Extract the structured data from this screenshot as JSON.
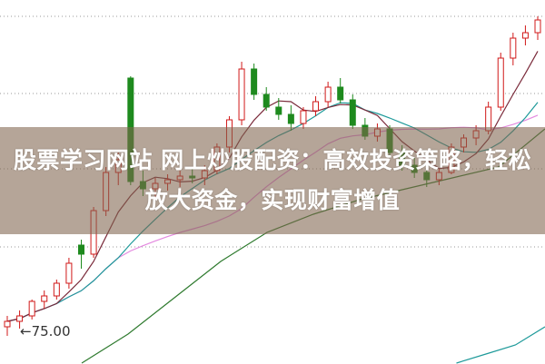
{
  "banner": {
    "title": "股票学习网站 网上炒股配资：高效投资策略，轻松放大资金，实现财富增值"
  },
  "chart_data": {
    "type": "candlestick",
    "title": "",
    "grid": true,
    "colors": {
      "up": "#d01818",
      "down": "#1e8a1e",
      "ma_short": "#7a2a3a",
      "ma_mid": "#1e9a9a",
      "ma_long": "#e48ae0",
      "ma_longer": "#2e7a2e"
    },
    "annotation": {
      "label": "75.00",
      "arrow": "left"
    },
    "candles": [
      [
        75.4,
        76.0,
        74.9,
        75.7
      ],
      [
        75.7,
        76.3,
        75.3,
        76.0
      ],
      [
        76.0,
        76.9,
        75.8,
        76.8
      ],
      [
        76.8,
        77.4,
        76.4,
        77.1
      ],
      [
        77.1,
        78.0,
        76.9,
        77.8
      ],
      [
        77.8,
        79.2,
        77.5,
        78.9
      ],
      [
        79.9,
        80.2,
        78.6,
        79.4
      ],
      [
        79.4,
        82.0,
        79.2,
        81.8
      ],
      [
        81.8,
        84.2,
        81.5,
        83.9
      ],
      [
        83.9,
        85.0,
        83.2,
        84.6
      ],
      [
        89.1,
        89.2,
        83.2,
        83.4
      ],
      [
        83.4,
        84.0,
        82.6,
        83.0
      ],
      [
        83.0,
        83.6,
        82.5,
        83.3
      ],
      [
        83.3,
        83.8,
        82.9,
        83.5
      ],
      [
        83.5,
        84.0,
        83.1,
        83.7
      ],
      [
        83.7,
        84.2,
        83.3,
        83.6
      ],
      [
        83.6,
        84.3,
        83.2,
        84.0
      ],
      [
        84.0,
        85.5,
        83.8,
        85.3
      ],
      [
        85.3,
        87.0,
        85.0,
        86.8
      ],
      [
        86.8,
        90.0,
        86.5,
        89.6
      ],
      [
        89.6,
        89.9,
        87.9,
        88.2
      ],
      [
        88.2,
        88.6,
        87.3,
        87.5
      ],
      [
        87.5,
        88.0,
        86.8,
        87.1
      ],
      [
        87.1,
        87.6,
        86.2,
        86.6
      ],
      [
        86.6,
        87.5,
        86.3,
        87.3
      ],
      [
        87.3,
        88.1,
        87.0,
        87.8
      ],
      [
        87.8,
        88.9,
        87.5,
        88.6
      ],
      [
        88.6,
        89.1,
        87.7,
        87.9
      ],
      [
        87.9,
        88.2,
        86.3,
        86.5
      ],
      [
        86.5,
        86.9,
        85.7,
        85.9
      ],
      [
        85.9,
        86.6,
        85.6,
        86.3
      ],
      [
        86.3,
        86.5,
        84.8,
        85.0
      ],
      [
        85.0,
        85.4,
        84.0,
        84.3
      ],
      [
        84.3,
        84.7,
        83.6,
        83.9
      ],
      [
        83.9,
        84.4,
        83.1,
        83.5
      ],
      [
        83.5,
        84.1,
        83.2,
        83.9
      ],
      [
        83.9,
        85.5,
        83.8,
        85.3
      ],
      [
        85.3,
        86.0,
        85.0,
        85.8
      ],
      [
        85.8,
        86.5,
        85.4,
        86.2
      ],
      [
        86.2,
        87.8,
        86.0,
        87.5
      ],
      [
        87.5,
        90.5,
        87.3,
        90.2
      ],
      [
        90.2,
        91.6,
        89.8,
        91.3
      ],
      [
        91.3,
        92.0,
        90.9,
        91.6
      ],
      [
        91.6,
        92.5,
        91.2,
        92.3
      ]
    ],
    "ma_longer": [
      73.4,
      75.0,
      77.0,
      79.0,
      80.6,
      81.6,
      82.4,
      83.0,
      83.6,
      84.2,
      86.3
    ],
    "ma_very_long": [
      71.0,
      71.4,
      71.9,
      72.4,
      72.9,
      73.4,
      73.9,
      74.4,
      75.4
    ]
  }
}
